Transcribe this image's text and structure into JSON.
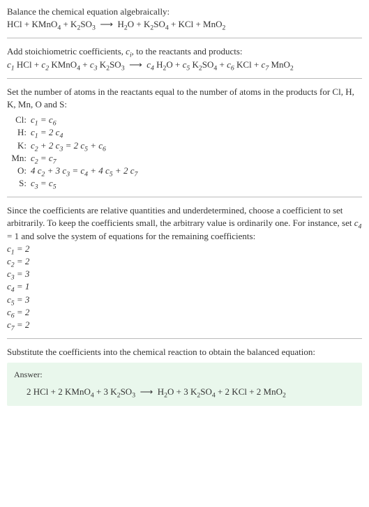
{
  "intro1": "Balance the chemical equation algebraically:",
  "eq1_html": "HCl + KMnO<sub>4</sub> + K<sub>2</sub>SO<sub>3</sub> &nbsp;⟶&nbsp; H<sub>2</sub>O + K<sub>2</sub>SO<sub>4</sub> + KCl + MnO<sub>2</sub>",
  "intro2_html": "Add stoichiometric coefficients, <span class=\"italic\">c<sub>i</sub></span>, to the reactants and products:",
  "eq2_html": "<span class=\"italic\">c<sub>1</sub></span> HCl + <span class=\"italic\">c<sub>2</sub></span> KMnO<sub>4</sub> + <span class=\"italic\">c<sub>3</sub></span> K<sub>2</sub>SO<sub>3</sub> &nbsp;⟶&nbsp; <span class=\"italic\">c<sub>4</sub></span> H<sub>2</sub>O + <span class=\"italic\">c<sub>5</sub></span> K<sub>2</sub>SO<sub>4</sub> + <span class=\"italic\">c<sub>6</sub></span> KCl + <span class=\"italic\">c<sub>7</sub></span> MnO<sub>2</sub>",
  "intro3": "Set the number of atoms in the reactants equal to the number of atoms in the products for Cl, H, K, Mn, O and S:",
  "atoms": [
    {
      "label": "Cl:",
      "expr_html": "c<sub>1</sub> = c<sub>6</sub>"
    },
    {
      "label": "H:",
      "expr_html": "c<sub>1</sub> = 2 c<sub>4</sub>"
    },
    {
      "label": "K:",
      "expr_html": "c<sub>2</sub> + 2 c<sub>3</sub> = 2 c<sub>5</sub> + c<sub>6</sub>"
    },
    {
      "label": "Mn:",
      "expr_html": "c<sub>2</sub> = c<sub>7</sub>"
    },
    {
      "label": "O:",
      "expr_html": "4 c<sub>2</sub> + 3 c<sub>3</sub> = c<sub>4</sub> + 4 c<sub>5</sub> + 2 c<sub>7</sub>"
    },
    {
      "label": "S:",
      "expr_html": "c<sub>3</sub> = c<sub>5</sub>"
    }
  ],
  "intro4_html": "Since the coefficients are relative quantities and underdetermined, choose a coefficient to set arbitrarily. To keep the coefficients small, the arbitrary value is ordinarily one. For instance, set <span class=\"italic\">c<sub>4</sub></span> = 1 and solve the system of equations for the remaining coefficients:",
  "coefs": [
    "c<sub>1</sub> = 2",
    "c<sub>2</sub> = 2",
    "c<sub>3</sub> = 3",
    "c<sub>4</sub> = 1",
    "c<sub>5</sub> = 3",
    "c<sub>6</sub> = 2",
    "c<sub>7</sub> = 2"
  ],
  "intro5": "Substitute the coefficients into the chemical reaction to obtain the balanced equation:",
  "answer_label": "Answer:",
  "answer_html": "2 HCl + 2 KMnO<sub>4</sub> + 3 K<sub>2</sub>SO<sub>3</sub> &nbsp;⟶&nbsp; H<sub>2</sub>O + 3 K<sub>2</sub>SO<sub>4</sub> + 2 KCl + 2 MnO<sub>2</sub>",
  "colors": {
    "answer_bg": "#e9f7ec",
    "hr": "#bbbbbb",
    "text": "#333333"
  }
}
